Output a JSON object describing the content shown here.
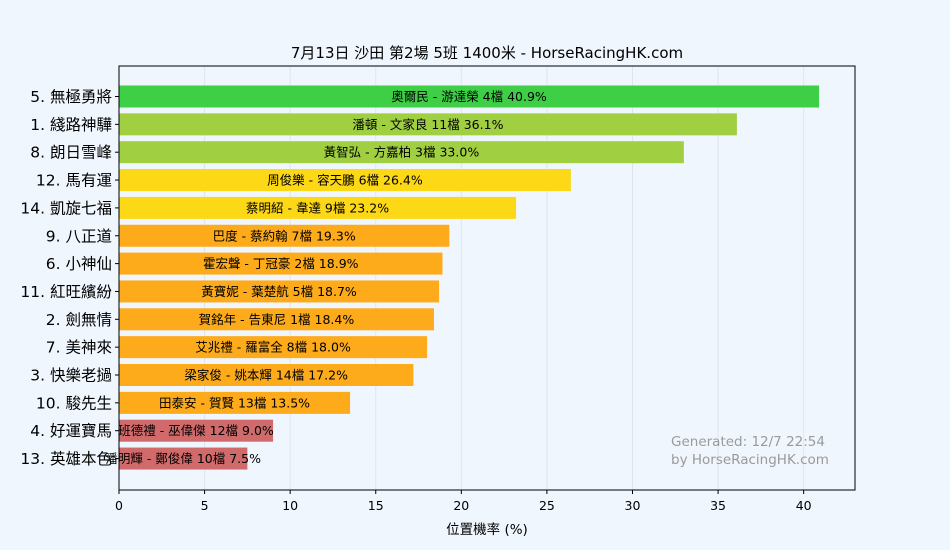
{
  "chart_data": {
    "type": "bar",
    "orientation": "horizontal",
    "title": "7月13日  沙田  第2場  5班  1400米 - HorseRacingHK.com",
    "xlabel": "位置機率 (%)",
    "ylabel": "",
    "xlim": [
      0,
      43
    ],
    "xticks": [
      0,
      5,
      10,
      15,
      20,
      25,
      30,
      35,
      40
    ],
    "grid": true,
    "categories": [
      "5. 無極勇將",
      "1. 綫路神驊",
      "8. 朗日雪峰",
      "12. 馬有運",
      "14. 凱旋七福",
      "9. 八正道",
      "6. 小神仙",
      "11. 紅旺繽紛",
      "2. 劍無情",
      "7. 美神來",
      "3. 快樂老撾",
      "10. 駿先生",
      "4. 好運寶馬",
      "13. 英雄本色"
    ],
    "values": [
      40.9,
      36.1,
      33.0,
      26.4,
      23.2,
      19.3,
      18.9,
      18.7,
      18.4,
      18.0,
      17.2,
      13.5,
      9.0,
      7.5
    ],
    "bar_labels": [
      "奧爾民 - 游達榮 4檔  40.9%",
      "潘頓 - 文家良 11檔  36.1%",
      "黃智弘 - 方嘉柏 3檔  33.0%",
      "周俊樂 - 容天鵬 6檔  26.4%",
      "蔡明紹 - 韋達 9檔  23.2%",
      "巴度 - 蔡約翰 7檔  19.3%",
      "霍宏聲 - 丁冠豪 2檔  18.9%",
      "黃寶妮 - 葉楚航 5檔  18.7%",
      "賀銘年 - 告東尼 1檔  18.4%",
      "艾兆禮 - 羅富全 8檔  18.0%",
      "梁家俊 - 姚本輝 14檔  17.2%",
      "田泰安 - 賀賢 13檔  13.5%",
      "班德禮 - 巫偉傑 12檔  9.0%",
      "潘明輝 - 鄭俊偉 10檔  7.5%"
    ],
    "colors": [
      "#3ecf47",
      "#a0cf42",
      "#a0cf42",
      "#fdd816",
      "#fdd816",
      "#fdaa1b",
      "#fdaa1b",
      "#fdaa1b",
      "#fdaa1b",
      "#fdaa1b",
      "#fdaa1b",
      "#fdaa1b",
      "#d16a6a",
      "#d16a6a"
    ],
    "watermark": [
      "Generated: 12/7 22:54",
      "by HorseRacingHK.com"
    ]
  }
}
